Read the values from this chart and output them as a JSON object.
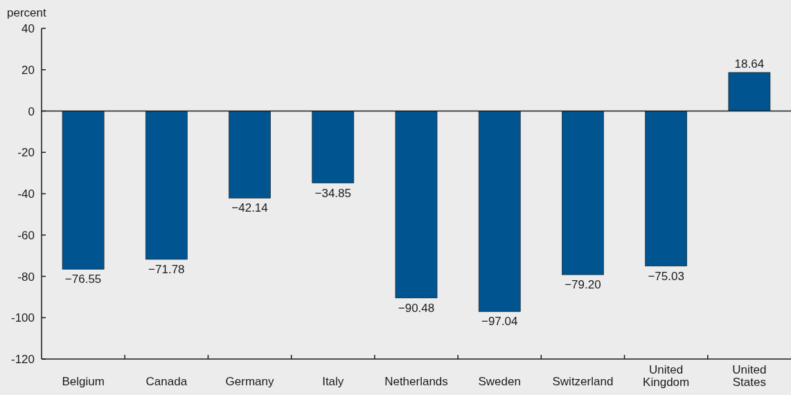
{
  "chart_data": {
    "type": "bar",
    "ylabel": "percent",
    "categories": [
      "Belgium",
      "Canada",
      "Germany",
      "Italy",
      "Netherlands",
      "Sweden",
      "Switzerland",
      "United Kingdom",
      "United States"
    ],
    "values": [
      -76.55,
      -71.78,
      -42.14,
      -34.85,
      -90.48,
      -97.04,
      -79.2,
      -75.03,
      18.64
    ],
    "value_labels": [
      "−76.55",
      "−71.78",
      "−42.14",
      "−34.85",
      "−90.48",
      "−97.04",
      "−79.20",
      "−75.03",
      "18.64"
    ],
    "color": "#00548f",
    "ylim": [
      -120,
      40
    ],
    "yticks": [
      -120,
      -100,
      -80,
      -60,
      -40,
      -20,
      0,
      20,
      40
    ]
  }
}
